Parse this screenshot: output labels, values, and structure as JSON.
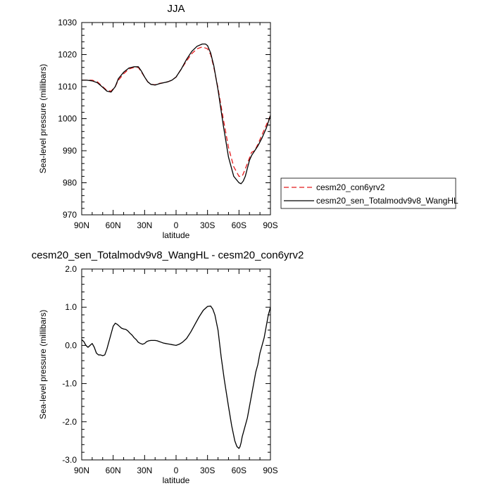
{
  "chart_data": [
    {
      "type": "line",
      "title": "JJA",
      "xlabel": "latitude",
      "ylabel": "Sea-level pressure (millibars)",
      "xlim": [
        90,
        -90
      ],
      "ylim": [
        970,
        1030
      ],
      "x_ticks": [
        90,
        60,
        30,
        0,
        -30,
        -60,
        -90
      ],
      "x_tick_labels": [
        "90N",
        "60N",
        "30N",
        "0",
        "30S",
        "60S",
        "90S"
      ],
      "y_ticks": [
        970,
        980,
        990,
        1000,
        1010,
        1020,
        1030
      ],
      "y_tick_labels": [
        "970",
        "980",
        "990",
        "1000",
        "1010",
        "1020",
        "1030"
      ],
      "legend_position": "right",
      "series": [
        {
          "name": "cesm20_con6yrv2",
          "color": "#e41a1c",
          "dash": "dashed",
          "x": [
            90,
            85,
            80,
            75,
            70,
            66,
            62,
            58,
            55,
            50,
            45,
            40,
            36,
            33,
            30,
            27,
            24,
            20,
            16,
            12,
            8,
            4,
            0,
            -5,
            -10,
            -15,
            -20,
            -25,
            -30,
            -33,
            -36,
            -40,
            -45,
            -50,
            -55,
            -60,
            -63,
            -65,
            -68,
            -72,
            -75,
            -78,
            -82,
            -86,
            -90
          ],
          "y": [
            1012,
            1012,
            1012,
            1011.5,
            1010,
            1008.8,
            1008.6,
            1010,
            1012,
            1014,
            1015.5,
            1016,
            1016,
            1014.5,
            1013,
            1011.5,
            1010.7,
            1010.6,
            1011,
            1011.2,
            1011.5,
            1012,
            1013,
            1015.5,
            1018,
            1020.3,
            1021.8,
            1022.4,
            1021.8,
            1020,
            1016,
            1009.5,
            1000,
            991,
            985,
            982,
            982,
            983.5,
            986,
            989.5,
            990,
            992,
            995,
            998,
            1001
          ]
        },
        {
          "name": "cesm20_sen_Totalmodv9v8_WangHL",
          "color": "#000000",
          "dash": "solid",
          "x": [
            90,
            85,
            80,
            75,
            70,
            66,
            62,
            58,
            55,
            50,
            45,
            40,
            36,
            33,
            30,
            27,
            24,
            20,
            16,
            12,
            8,
            4,
            0,
            -5,
            -10,
            -15,
            -20,
            -25,
            -28,
            -30,
            -33,
            -36,
            -40,
            -45,
            -50,
            -55,
            -60,
            -62,
            -64,
            -66,
            -68,
            -70,
            -72,
            -75,
            -78,
            -82,
            -86,
            -90
          ],
          "y": [
            1012,
            1012,
            1011.8,
            1011.2,
            1009.8,
            1008.6,
            1008.3,
            1010,
            1012.5,
            1014.5,
            1015.8,
            1016.2,
            1016.2,
            1014.8,
            1013,
            1011.5,
            1010.7,
            1010.5,
            1010.9,
            1011.2,
            1011.5,
            1012,
            1013,
            1015.5,
            1018.5,
            1021,
            1022.6,
            1023.3,
            1023.3,
            1022.8,
            1020.5,
            1016.5,
            1009,
            998,
            988,
            982,
            980,
            979.7,
            980.5,
            982,
            984.5,
            987,
            988.5,
            990,
            991.5,
            994,
            997,
            1001
          ]
        }
      ]
    },
    {
      "type": "line",
      "title": "cesm20_sen_Totalmodv9v8_WangHL - cesm20_con6yrv2",
      "xlabel": "latitude",
      "ylabel": "Sea-level pressure (millibars)",
      "xlim": [
        90,
        -90
      ],
      "ylim": [
        -3.0,
        2.0
      ],
      "x_ticks": [
        90,
        60,
        30,
        0,
        -30,
        -60,
        -90
      ],
      "x_tick_labels": [
        "90N",
        "60N",
        "30N",
        "0",
        "30S",
        "60S",
        "90S"
      ],
      "y_ticks": [
        -3.0,
        -2.0,
        -1.0,
        0.0,
        1.0,
        2.0
      ],
      "y_tick_labels": [
        "-3.0",
        "-2.0",
        "-1.0",
        "0.0",
        "1.0",
        "2.0"
      ],
      "series": [
        {
          "color": "#000000",
          "dash": "solid",
          "x": [
            90,
            88,
            86,
            84,
            82,
            80,
            78,
            76,
            74,
            72,
            70,
            68,
            66,
            64,
            62,
            60,
            58,
            56,
            54,
            52,
            50,
            48,
            46,
            44,
            42,
            40,
            38,
            36,
            34,
            32,
            30,
            28,
            26,
            24,
            22,
            20,
            18,
            16,
            14,
            12,
            10,
            8,
            6,
            4,
            2,
            0,
            -3,
            -6,
            -10,
            -14,
            -18,
            -22,
            -26,
            -30,
            -33,
            -35,
            -37,
            -40,
            -43,
            -46,
            -50,
            -53,
            -56,
            -58,
            -60,
            -61,
            -62,
            -63,
            -64,
            -66,
            -68,
            -70,
            -72,
            -74,
            -76,
            -78,
            -80,
            -82,
            -84,
            -86,
            -88,
            -90
          ],
          "y": [
            0.15,
            0.1,
            0.0,
            -0.05,
            0.0,
            0.05,
            -0.05,
            -0.2,
            -0.25,
            -0.25,
            -0.27,
            -0.25,
            -0.1,
            0.1,
            0.3,
            0.5,
            0.58,
            0.55,
            0.5,
            0.45,
            0.43,
            0.42,
            0.38,
            0.32,
            0.27,
            0.2,
            0.15,
            0.08,
            0.05,
            0.03,
            0.05,
            0.1,
            0.12,
            0.13,
            0.13,
            0.13,
            0.12,
            0.1,
            0.08,
            0.06,
            0.05,
            0.04,
            0.03,
            0.02,
            0.01,
            0.0,
            0.03,
            0.08,
            0.18,
            0.35,
            0.55,
            0.75,
            0.92,
            1.02,
            1.03,
            0.95,
            0.8,
            0.4,
            -0.3,
            -0.9,
            -1.6,
            -2.1,
            -2.5,
            -2.65,
            -2.7,
            -2.65,
            -2.55,
            -2.4,
            -2.3,
            -2.1,
            -1.9,
            -1.6,
            -1.3,
            -1.0,
            -0.7,
            -0.5,
            -0.2,
            0.0,
            0.2,
            0.5,
            0.8,
            1.0
          ]
        }
      ]
    }
  ]
}
